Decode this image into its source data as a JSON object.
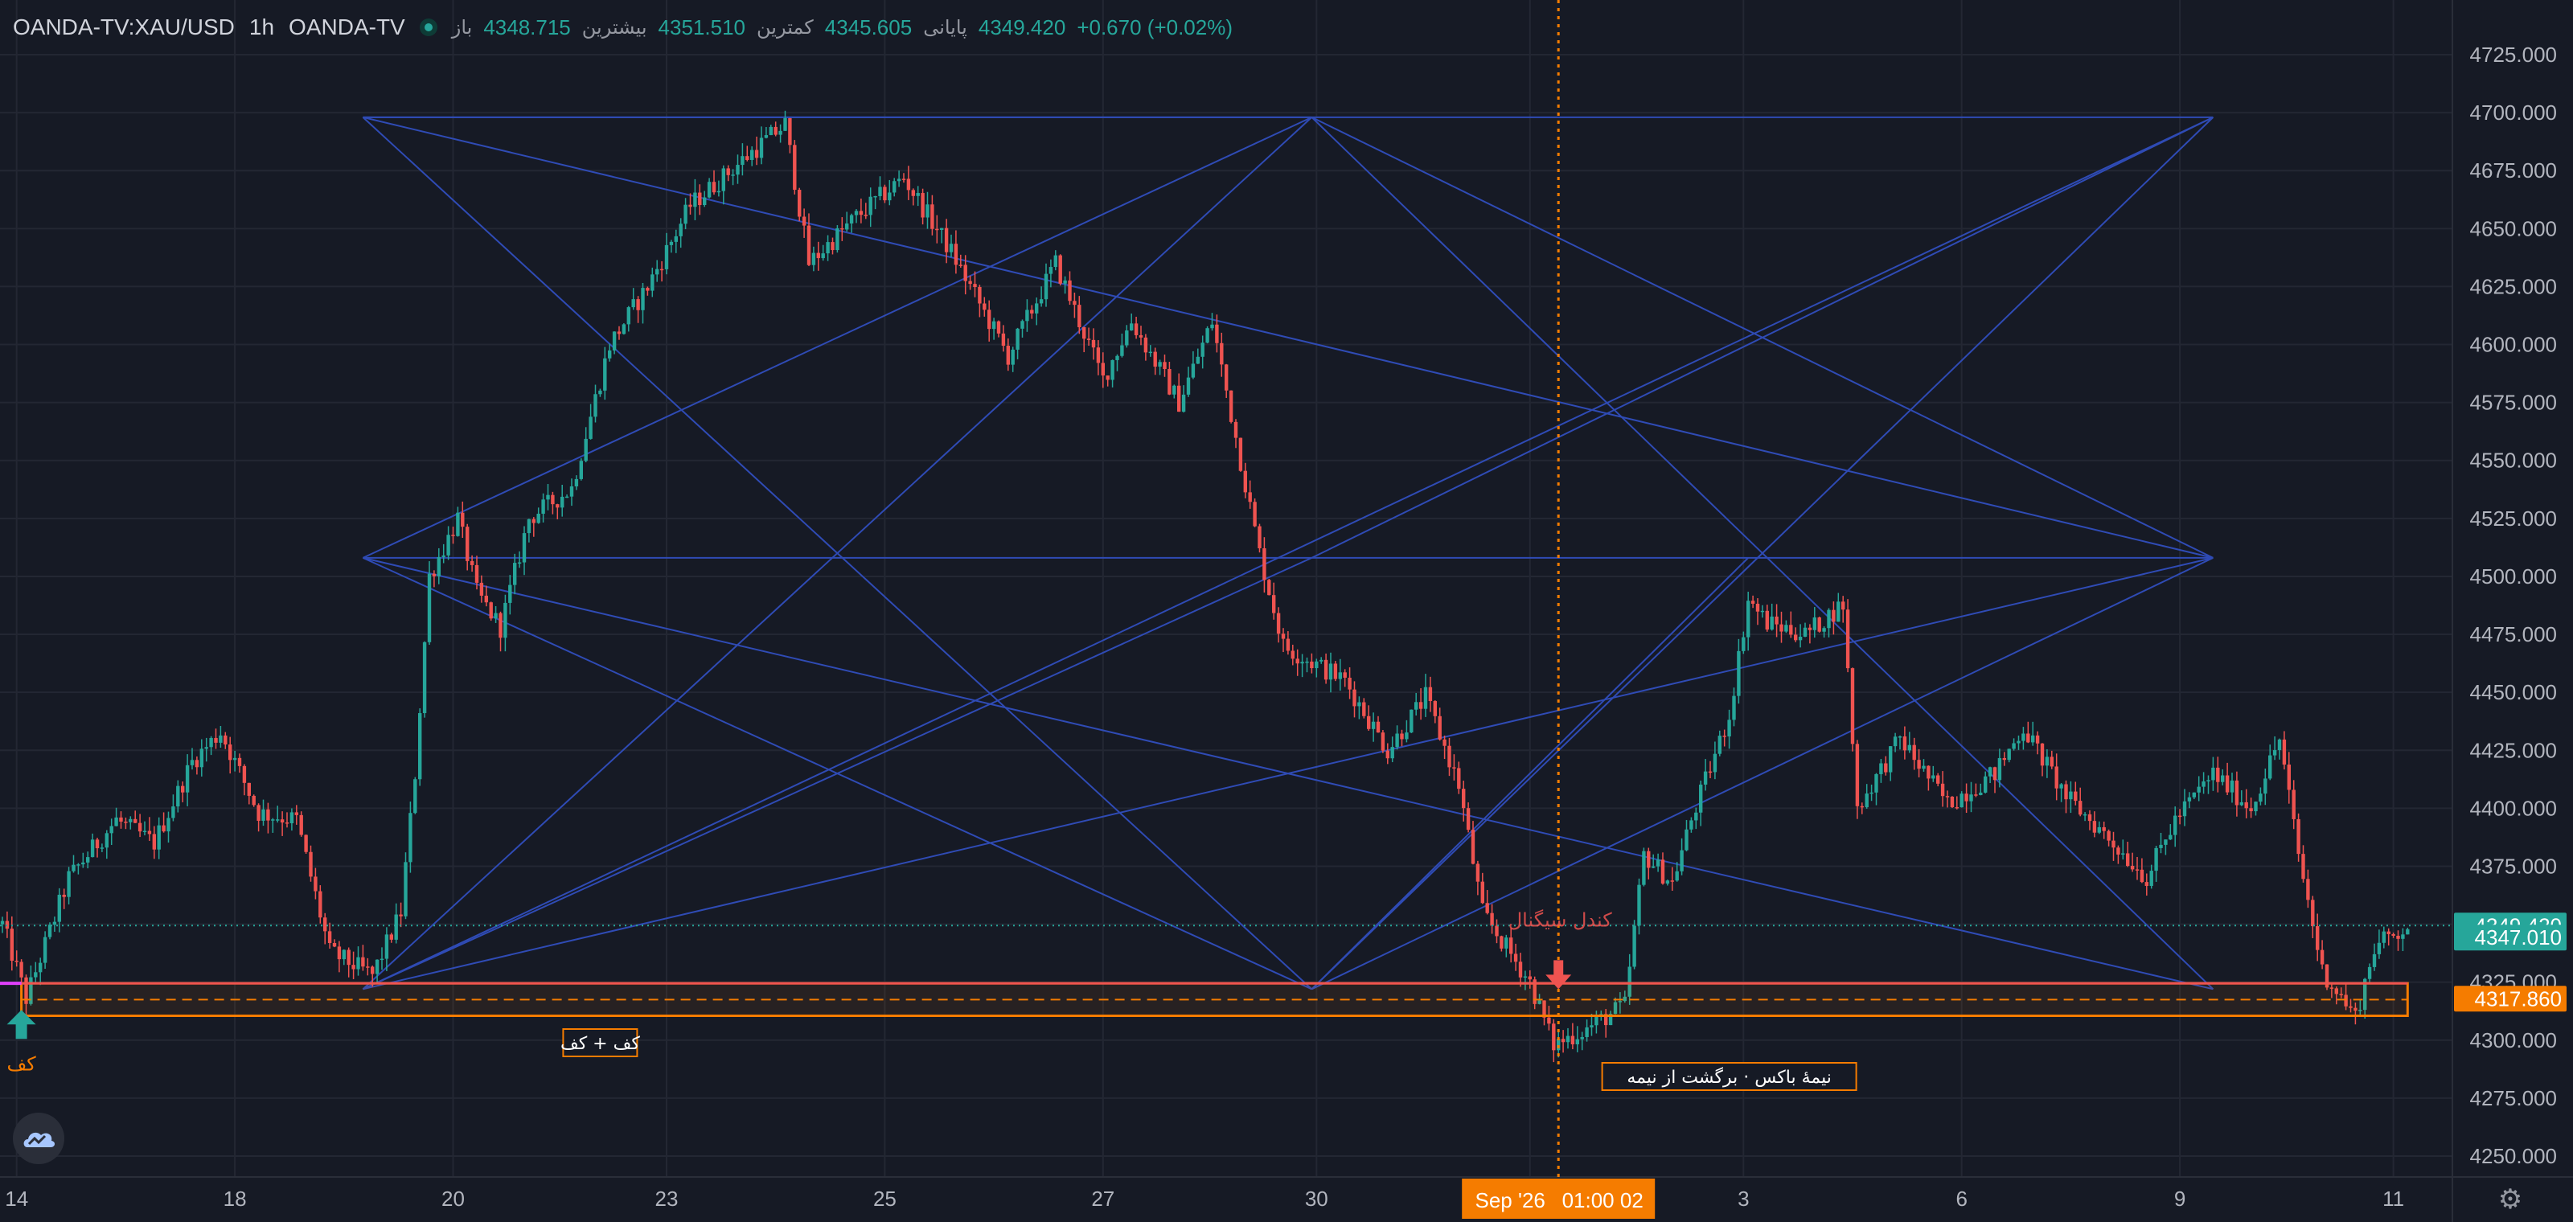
{
  "header": {
    "symbol": "OANDA-TV:XAU/USD",
    "interval": "1h",
    "source": "OANDA-TV",
    "open_label": "باز",
    "open_value": "4348.715",
    "high_label": "بیشترین",
    "high_value": "4351.510",
    "low_label": "کمترین",
    "low_value": "4345.605",
    "close_label": "پایانی",
    "close_value": "4349.420",
    "change": "+0.670 (+0.02%)"
  },
  "colors": {
    "background": "#161a25",
    "up": "#26a69a",
    "down": "#ef5350",
    "pattern_lines": "#2f4bb5",
    "box": "#f57c00",
    "box_top_line": "#ef5350",
    "grid": "#232733",
    "axis_text": "#b2b5be",
    "crosshair": "#f57c00",
    "magenta": "#e040fb"
  },
  "chart_data": {
    "type": "candlestick",
    "title": "",
    "xlabel": "",
    "ylabel": "",
    "ylim": [
      4237,
      4737
    ],
    "y_ticks": [
      4250,
      4275,
      4300,
      4325,
      4350,
      4375,
      4400,
      4425,
      4450,
      4475,
      4500,
      4525,
      4550,
      4575,
      4600,
      4625,
      4650,
      4675,
      4700,
      4725
    ],
    "x_tick_labels": [
      "14",
      "18",
      "20",
      "23",
      "25",
      "27",
      "30",
      "Sep",
      "3",
      "6",
      "9",
      "11"
    ],
    "x_tick_bar_index": [
      3,
      49,
      95,
      140,
      186,
      232,
      277,
      322,
      367,
      413,
      459,
      504
    ],
    "bar_count": 530,
    "path_points": [
      [
        0,
        4350
      ],
      [
        5,
        4318
      ],
      [
        14,
        4370
      ],
      [
        24,
        4395
      ],
      [
        32,
        4385
      ],
      [
        40,
        4420
      ],
      [
        46,
        4433
      ],
      [
        54,
        4398
      ],
      [
        62,
        4395
      ],
      [
        69,
        4338
      ],
      [
        78,
        4328
      ],
      [
        84,
        4355
      ],
      [
        87,
        4415
      ],
      [
        90,
        4500
      ],
      [
        96,
        4525
      ],
      [
        100,
        4493
      ],
      [
        105,
        4478
      ],
      [
        111,
        4525
      ],
      [
        120,
        4538
      ],
      [
        128,
        4600
      ],
      [
        136,
        4625
      ],
      [
        145,
        4660
      ],
      [
        158,
        4683
      ],
      [
        165,
        4695
      ],
      [
        170,
        4635
      ],
      [
        180,
        4655
      ],
      [
        190,
        4672
      ],
      [
        200,
        4640
      ],
      [
        212,
        4595
      ],
      [
        222,
        4635
      ],
      [
        232,
        4585
      ],
      [
        238,
        4610
      ],
      [
        248,
        4575
      ],
      [
        255,
        4610
      ],
      [
        265,
        4510
      ],
      [
        270,
        4470
      ],
      [
        283,
        4455
      ],
      [
        292,
        4425
      ],
      [
        300,
        4448
      ],
      [
        307,
        4410
      ],
      [
        312,
        4355
      ],
      [
        322,
        4325
      ],
      [
        327,
        4298
      ],
      [
        334,
        4305
      ],
      [
        342,
        4315
      ],
      [
        346,
        4380
      ],
      [
        352,
        4368
      ],
      [
        356,
        4395
      ],
      [
        364,
        4440
      ],
      [
        368,
        4490
      ],
      [
        372,
        4480
      ],
      [
        380,
        4475
      ],
      [
        388,
        4488
      ],
      [
        391,
        4400
      ],
      [
        400,
        4430
      ],
      [
        410,
        4402
      ],
      [
        420,
        4415
      ],
      [
        426,
        4435
      ],
      [
        435,
        4405
      ],
      [
        445,
        4385
      ],
      [
        452,
        4370
      ],
      [
        458,
        4395
      ],
      [
        466,
        4415
      ],
      [
        474,
        4400
      ],
      [
        480,
        4430
      ],
      [
        484,
        4380
      ],
      [
        489,
        4330
      ],
      [
        496,
        4310
      ],
      [
        500,
        4340
      ],
      [
        505,
        4347
      ],
      [
        507,
        4349.42
      ]
    ],
    "current_price": 4349.42,
    "price_labels": [
      {
        "value": 4349.42,
        "text": "4349.420",
        "color": "#26a69a"
      },
      {
        "value": 4347.01,
        "text": "4347.010",
        "color": "#26a69a"
      },
      {
        "value": 4317.86,
        "text": "4317.860",
        "color": "#f57c00"
      }
    ],
    "box": {
      "top": 4324.5,
      "bottom": 4310.5,
      "mid": 4317.5,
      "x_start_bar": 4,
      "x_end_bar": 507
    },
    "pattern_lines": [
      [
        [
          76,
          4698
        ],
        [
          276,
          4698
        ]
      ],
      [
        [
          76,
          4698
        ],
        [
          466,
          4698
        ]
      ],
      [
        [
          76,
          4698
        ],
        [
          276,
          4322
        ]
      ],
      [
        [
          76,
          4698
        ],
        [
          466,
          4508
        ]
      ],
      [
        [
          76,
          4508
        ],
        [
          276,
          4698
        ]
      ],
      [
        [
          76,
          4508
        ],
        [
          276,
          4322
        ]
      ],
      [
        [
          76,
          4508
        ],
        [
          466,
          4508
        ]
      ],
      [
        [
          76,
          4508
        ],
        [
          466,
          4322
        ]
      ],
      [
        [
          76,
          4322
        ],
        [
          276,
          4698
        ]
      ],
      [
        [
          76,
          4322
        ],
        [
          276,
          4508
        ]
      ],
      [
        [
          76,
          4322
        ],
        [
          466,
          4698
        ]
      ],
      [
        [
          76,
          4322
        ],
        [
          466,
          4508
        ]
      ],
      [
        [
          276,
          4698
        ],
        [
          466,
          4322
        ]
      ],
      [
        [
          276,
          4508
        ],
        [
          466,
          4698
        ]
      ],
      [
        [
          276,
          4322
        ],
        [
          466,
          4698
        ]
      ],
      [
        [
          276,
          4322
        ],
        [
          466,
          4508
        ]
      ],
      [
        [
          276,
          4698
        ],
        [
          466,
          4508
        ]
      ],
      [
        [
          276,
          4322
        ],
        [
          368,
          4508
        ]
      ]
    ],
    "crosshair": {
      "bar": 328,
      "date_label": "Sep '26",
      "time_label": "01:00 02"
    },
    "annotations": {
      "arrow_up_label": "کف",
      "double_bottom": "کف + کف",
      "candle_label": "کندل سیگنال",
      "half_box": "نیمهٔ باکس · برگشت از نیمه"
    }
  }
}
